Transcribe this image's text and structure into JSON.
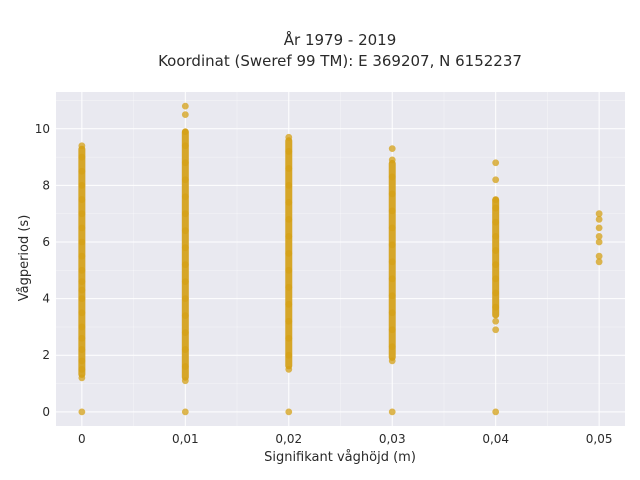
{
  "chart_data": {
    "type": "scatter",
    "title": "År 1979 - 2019",
    "subtitle": "Koordinat (Sweref 99 TM): E 369207, N 6152237",
    "xlabel": "Signifikant våghöjd (m)",
    "ylabel": "Vågperiod (s)",
    "xlim": [
      -0.0025,
      0.0525
    ],
    "ylim": [
      -0.5,
      11.3
    ],
    "x_ticks": [
      0,
      0.01,
      0.02,
      0.03,
      0.04,
      0.05
    ],
    "x_tick_labels": [
      "0",
      "0,01",
      "0,02",
      "0,03",
      "0,04",
      "0,05"
    ],
    "y_ticks": [
      0,
      2,
      4,
      6,
      8,
      10
    ],
    "y_tick_labels": [
      "0",
      "2",
      "4",
      "6",
      "8",
      "10"
    ],
    "grid": true,
    "marker_color": "#D4A017",
    "background_color": "#E9E9F0",
    "series": [
      {
        "points": [
          {
            "x": 0,
            "y": 0
          },
          {
            "x": 0,
            "y": 1.2
          },
          {
            "x": 0,
            "y": 1.5
          },
          {
            "x": 0,
            "y": 1.8
          },
          {
            "x": 0,
            "y": 2.2
          },
          {
            "x": 0,
            "y": 2.6
          },
          {
            "x": 0,
            "y": 3.0
          },
          {
            "x": 0,
            "y": 3.5
          },
          {
            "x": 0,
            "y": 4.0
          },
          {
            "x": 0,
            "y": 4.3
          },
          {
            "x": 0,
            "y": 4.6
          },
          {
            "x": 0,
            "y": 5.0
          },
          {
            "x": 0,
            "y": 5.5
          },
          {
            "x": 0,
            "y": 6.0
          },
          {
            "x": 0,
            "y": 6.5
          },
          {
            "x": 0,
            "y": 7.0
          },
          {
            "x": 0,
            "y": 7.5
          },
          {
            "x": 0,
            "y": 8.0
          },
          {
            "x": 0,
            "y": 8.5
          },
          {
            "x": 0,
            "y": 9.0
          },
          {
            "x": 0,
            "y": 9.4
          },
          {
            "x": 0.01,
            "y": 0
          },
          {
            "x": 0.01,
            "y": 1.1
          },
          {
            "x": 0.01,
            "y": 1.6
          },
          {
            "x": 0.01,
            "y": 2.2
          },
          {
            "x": 0.01,
            "y": 2.8
          },
          {
            "x": 0.01,
            "y": 3.4
          },
          {
            "x": 0.01,
            "y": 4.0
          },
          {
            "x": 0.01,
            "y": 4.6
          },
          {
            "x": 0.01,
            "y": 5.2
          },
          {
            "x": 0.01,
            "y": 5.8
          },
          {
            "x": 0.01,
            "y": 6.4
          },
          {
            "x": 0.01,
            "y": 7.0
          },
          {
            "x": 0.01,
            "y": 7.6
          },
          {
            "x": 0.01,
            "y": 8.2
          },
          {
            "x": 0.01,
            "y": 8.8
          },
          {
            "x": 0.01,
            "y": 9.4
          },
          {
            "x": 0.01,
            "y": 9.9
          },
          {
            "x": 0.01,
            "y": 10.5
          },
          {
            "x": 0.01,
            "y": 10.8
          },
          {
            "x": 0.02,
            "y": 0
          },
          {
            "x": 0.02,
            "y": 1.5
          },
          {
            "x": 0.02,
            "y": 2.0
          },
          {
            "x": 0.02,
            "y": 2.6
          },
          {
            "x": 0.02,
            "y": 3.2
          },
          {
            "x": 0.02,
            "y": 3.8
          },
          {
            "x": 0.02,
            "y": 4.4
          },
          {
            "x": 0.02,
            "y": 5.0
          },
          {
            "x": 0.02,
            "y": 5.6
          },
          {
            "x": 0.02,
            "y": 6.2
          },
          {
            "x": 0.02,
            "y": 6.8
          },
          {
            "x": 0.02,
            "y": 7.4
          },
          {
            "x": 0.02,
            "y": 8.0
          },
          {
            "x": 0.02,
            "y": 8.6
          },
          {
            "x": 0.02,
            "y": 9.2
          },
          {
            "x": 0.02,
            "y": 9.7
          },
          {
            "x": 0.03,
            "y": 0
          },
          {
            "x": 0.03,
            "y": 1.8
          },
          {
            "x": 0.03,
            "y": 2.3
          },
          {
            "x": 0.03,
            "y": 2.9
          },
          {
            "x": 0.03,
            "y": 3.5
          },
          {
            "x": 0.03,
            "y": 4.1
          },
          {
            "x": 0.03,
            "y": 4.7
          },
          {
            "x": 0.03,
            "y": 5.3
          },
          {
            "x": 0.03,
            "y": 5.9
          },
          {
            "x": 0.03,
            "y": 6.5
          },
          {
            "x": 0.03,
            "y": 7.1
          },
          {
            "x": 0.03,
            "y": 7.7
          },
          {
            "x": 0.03,
            "y": 8.3
          },
          {
            "x": 0.03,
            "y": 8.9
          },
          {
            "x": 0.03,
            "y": 9.3
          },
          {
            "x": 0.04,
            "y": 0
          },
          {
            "x": 0.04,
            "y": 2.9
          },
          {
            "x": 0.04,
            "y": 3.2
          },
          {
            "x": 0.04,
            "y": 3.7
          },
          {
            "x": 0.04,
            "y": 4.2
          },
          {
            "x": 0.04,
            "y": 4.7
          },
          {
            "x": 0.04,
            "y": 5.2
          },
          {
            "x": 0.04,
            "y": 5.7
          },
          {
            "x": 0.04,
            "y": 6.2
          },
          {
            "x": 0.04,
            "y": 6.7
          },
          {
            "x": 0.04,
            "y": 7.2
          },
          {
            "x": 0.04,
            "y": 7.5
          },
          {
            "x": 0.04,
            "y": 8.2
          },
          {
            "x": 0.04,
            "y": 8.8
          },
          {
            "x": 0.05,
            "y": 5.3
          },
          {
            "x": 0.05,
            "y": 5.5
          },
          {
            "x": 0.05,
            "y": 6.0
          },
          {
            "x": 0.05,
            "y": 6.2
          },
          {
            "x": 0.05,
            "y": 6.5
          },
          {
            "x": 0.05,
            "y": 6.8
          },
          {
            "x": 0.05,
            "y": 7.0
          }
        ]
      }
    ],
    "dense_bands": [
      {
        "x": 0,
        "y_range": [
          1.2,
          9.4
        ]
      },
      {
        "x": 0.01,
        "y_range": [
          1.1,
          10.0
        ]
      },
      {
        "x": 0.02,
        "y_range": [
          1.5,
          9.7
        ]
      },
      {
        "x": 0.03,
        "y_range": [
          1.8,
          8.9
        ]
      },
      {
        "x": 0.04,
        "y_range": [
          3.3,
          7.6
        ]
      }
    ]
  }
}
